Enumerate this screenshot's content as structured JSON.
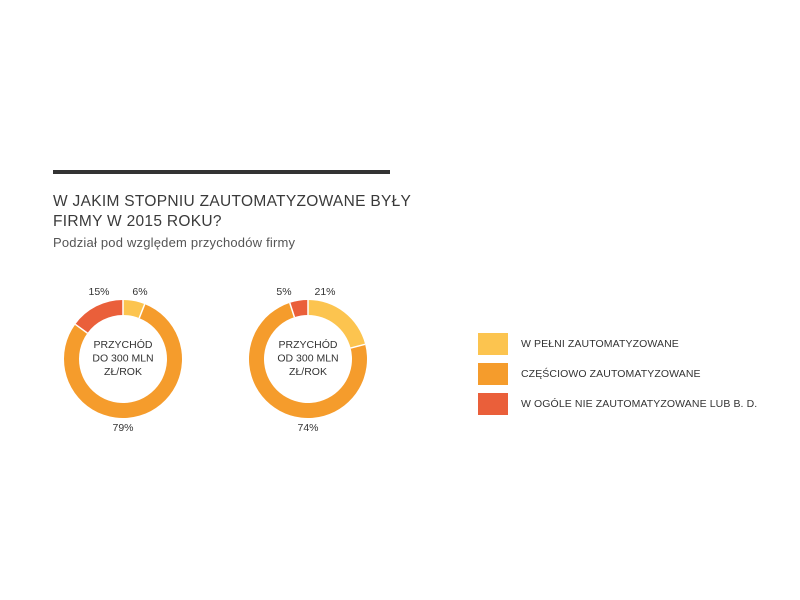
{
  "header": {
    "title": "W JAKIM STOPNIU ZAUTOMATYZOWANE BYŁY FIRMY W 2015 ROKU?",
    "subtitle": "Podział pod względem przychodów firmy"
  },
  "colors": {
    "full": "#fcc44f",
    "partial": "#f59c2c",
    "none": "#ea5f3a"
  },
  "legend": [
    {
      "label": "W PEŁNI ZAUTOMATYZOWANE",
      "color": "#fcc44f"
    },
    {
      "label": "CZĘŚCIOWO ZAUTOMATYZOWANE",
      "color": "#f59c2c"
    },
    {
      "label": "W OGÓLE NIE ZAUTOMATYZOWANE LUB B. D.",
      "color": "#ea5f3a"
    }
  ],
  "chart_data": [
    {
      "type": "pie",
      "center_label": [
        "PRZYCHÓD",
        "DO 300 MLN",
        "ZŁ/ROK"
      ],
      "categories": [
        "W PEŁNI ZAUTOMATYZOWANE",
        "CZĘŚCIOWO ZAUTOMATYZOWANE",
        "W OGÓLE NIE ZAUTOMATYZOWANE LUB B. D."
      ],
      "values": [
        6,
        79,
        15
      ],
      "value_labels": [
        "6%",
        "79%",
        "15%"
      ]
    },
    {
      "type": "pie",
      "center_label": [
        "PRZYCHÓD",
        "OD 300 MLN",
        "ZŁ/ROK"
      ],
      "categories": [
        "W PEŁNI ZAUTOMATYZOWANE",
        "CZĘŚCIOWO ZAUTOMATYZOWANE",
        "W OGÓLE NIE ZAUTOMATYZOWANE LUB B. D."
      ],
      "values": [
        21,
        74,
        5
      ],
      "value_labels": [
        "21%",
        "74%",
        "5%"
      ]
    }
  ]
}
